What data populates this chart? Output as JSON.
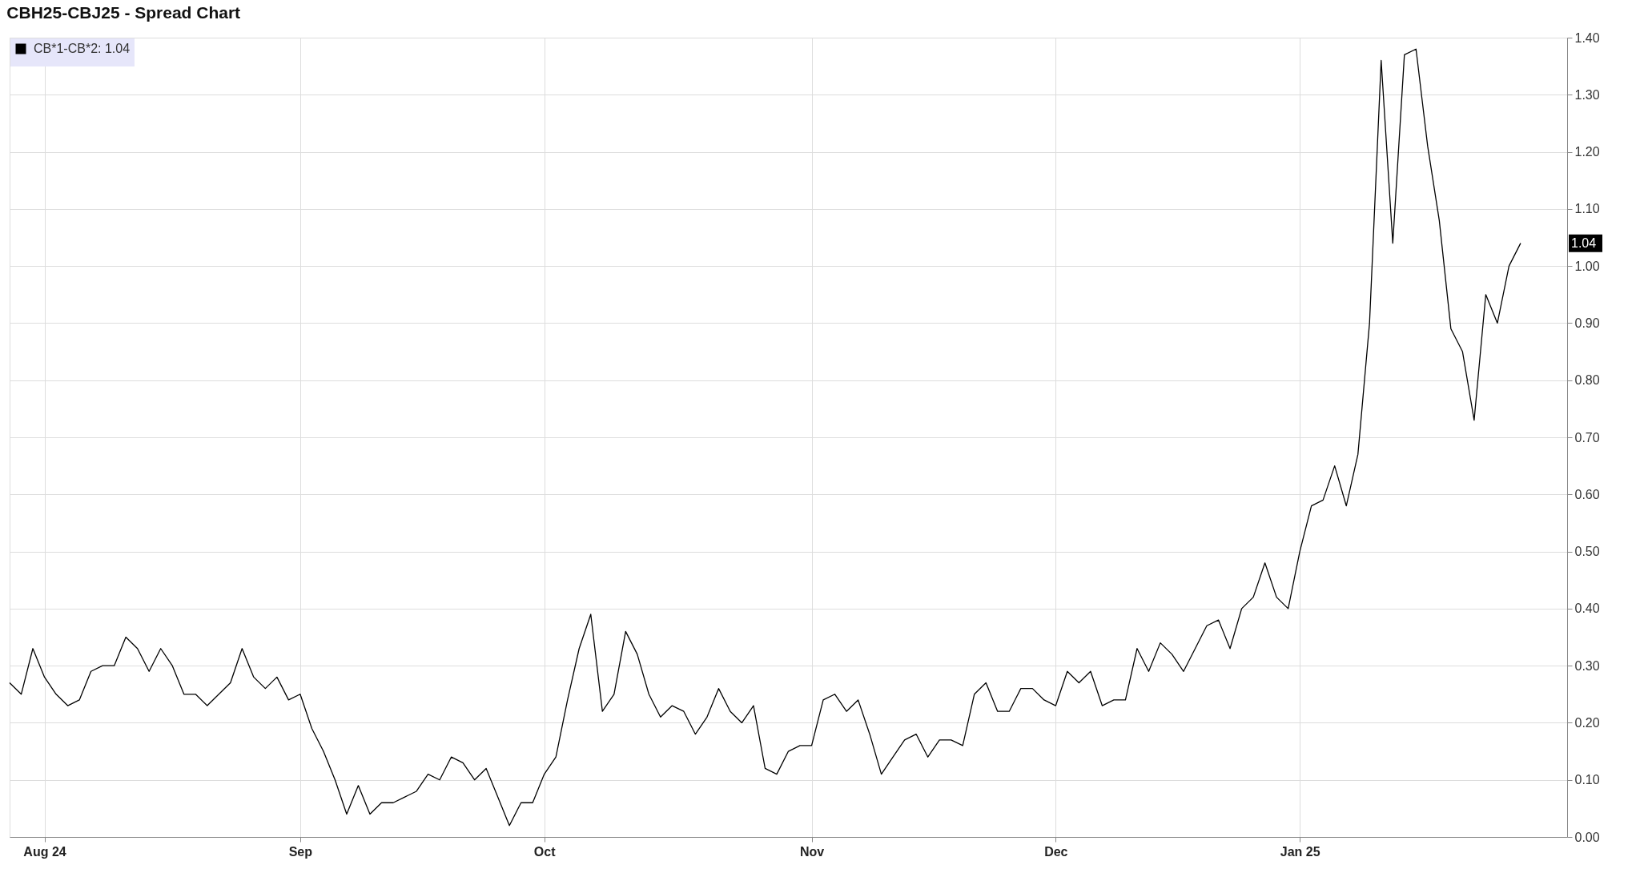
{
  "chart_data": {
    "type": "line",
    "title": "CBH25-CBJ25 - Spread Chart",
    "categories": [
      null,
      null,
      null,
      "Aug 24",
      null,
      null,
      null,
      null,
      null,
      null,
      null,
      null,
      null,
      null,
      null,
      null,
      null,
      null,
      null,
      null,
      null,
      null,
      null,
      null,
      null,
      "Sep",
      null,
      null,
      null,
      null,
      null,
      null,
      null,
      null,
      null,
      null,
      null,
      null,
      null,
      null,
      null,
      null,
      null,
      null,
      null,
      null,
      "Oct",
      null,
      null,
      null,
      null,
      null,
      null,
      null,
      null,
      null,
      null,
      null,
      null,
      null,
      null,
      null,
      null,
      null,
      null,
      null,
      null,
      null,
      null,
      "Nov",
      null,
      null,
      null,
      null,
      null,
      null,
      null,
      null,
      null,
      null,
      null,
      null,
      null,
      null,
      null,
      null,
      null,
      null,
      null,
      null,
      "Dec",
      null,
      null,
      null,
      null,
      null,
      null,
      null,
      null,
      null,
      null,
      null,
      null,
      null,
      null,
      null,
      null,
      null,
      null,
      null,
      null,
      "Jan 25",
      null,
      null,
      null,
      null,
      null,
      null,
      null,
      null,
      null,
      null,
      null,
      null,
      null,
      null,
      null,
      null,
      null,
      null,
      null,
      null,
      null,
      null,
      null
    ],
    "series": [
      {
        "name": "CB*1-CB*2: 1.04",
        "color": "#000000",
        "values": [
          0.27,
          0.25,
          0.33,
          0.28,
          0.25,
          0.23,
          0.24,
          0.29,
          0.3,
          0.3,
          0.35,
          0.33,
          0.29,
          0.33,
          0.3,
          0.25,
          0.25,
          0.23,
          0.25,
          0.27,
          0.33,
          0.28,
          0.26,
          0.28,
          0.24,
          0.25,
          0.19,
          0.15,
          0.1,
          0.04,
          0.09,
          0.04,
          0.06,
          0.06,
          0.07,
          0.08,
          0.11,
          0.1,
          0.14,
          0.13,
          0.1,
          0.12,
          0.07,
          0.02,
          0.06,
          0.06,
          0.11,
          0.14,
          0.24,
          0.33,
          0.39,
          0.22,
          0.25,
          0.36,
          0.32,
          0.25,
          0.21,
          0.23,
          0.22,
          0.18,
          0.21,
          0.26,
          0.22,
          0.2,
          0.23,
          0.12,
          0.11,
          0.15,
          0.16,
          0.16,
          0.24,
          0.25,
          0.22,
          0.24,
          0.18,
          0.11,
          0.14,
          0.17,
          0.18,
          0.14,
          0.17,
          0.17,
          0.16,
          0.25,
          0.27,
          0.22,
          0.22,
          0.26,
          0.26,
          0.24,
          0.23,
          0.29,
          0.27,
          0.29,
          0.23,
          0.24,
          0.24,
          0.33,
          0.29,
          0.34,
          0.32,
          0.29,
          0.33,
          0.37,
          0.38,
          0.33,
          0.4,
          0.42,
          0.48,
          0.42,
          0.4,
          0.5,
          0.58,
          0.59,
          0.65,
          0.58,
          0.67,
          0.9,
          1.36,
          1.04,
          1.37,
          1.38,
          1.21,
          1.08,
          0.89,
          0.85,
          0.73,
          0.95,
          0.9,
          1.0,
          1.04,
          null,
          null,
          null,
          null
        ]
      }
    ],
    "ylim": [
      0,
      1.4
    ],
    "yticks": [
      {
        "value": 0,
        "label": "0.00"
      },
      {
        "value": 0.1,
        "label": "0.10"
      },
      {
        "value": 0.2,
        "label": "0.20"
      },
      {
        "value": 0.3,
        "label": "0.30"
      },
      {
        "value": 0.4,
        "label": "0.40"
      },
      {
        "value": 0.5,
        "label": "0.50"
      },
      {
        "value": 0.6,
        "label": "0.60"
      },
      {
        "value": 0.7,
        "label": "0.70"
      },
      {
        "value": 0.8,
        "label": "0.80"
      },
      {
        "value": 0.9,
        "label": "0.90"
      },
      {
        "value": 1.0,
        "label": "1.00"
      },
      {
        "value": 1.1,
        "label": "1.10"
      },
      {
        "value": 1.2,
        "label": "1.20"
      },
      {
        "value": 1.3,
        "label": "1.30"
      },
      {
        "value": 1.4,
        "label": "1.40"
      }
    ],
    "annotations": [
      "1.04"
    ],
    "grid": true,
    "legend": "top left"
  }
}
